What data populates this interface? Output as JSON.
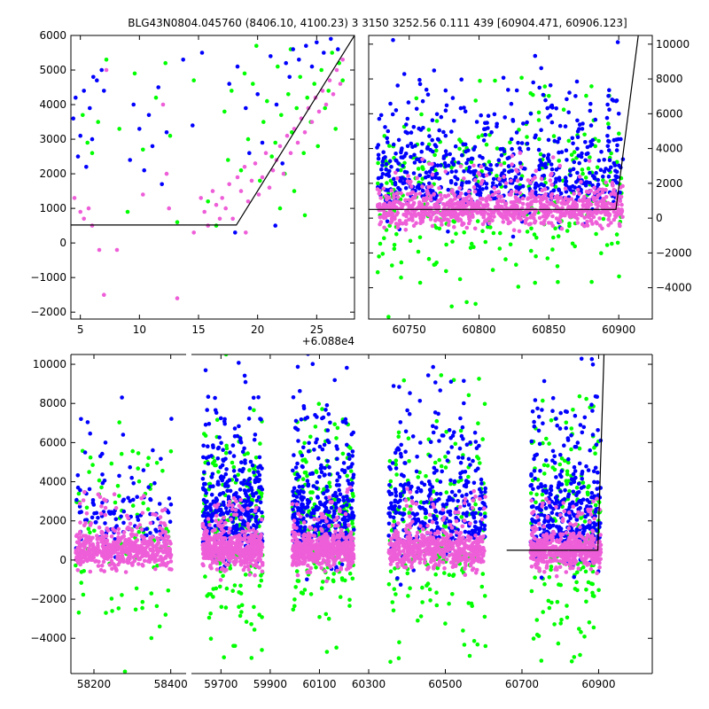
{
  "title": "BLG43N0804.045760 (8406.10, 4100.23)    3 3150 3252.56 0.111 439 [60904.471, 60906.123]",
  "colors": {
    "green": "#00ff00",
    "blue": "#0000ff",
    "pink": "#ee5ed8",
    "axis": "#000000"
  },
  "chart_data": [
    {
      "id": "top-left",
      "type": "scatter",
      "x_offset_label": "+6.088e4",
      "xlim": [
        4.2,
        28.2
      ],
      "ylim": [
        -2200,
        6000
      ],
      "xticks": [
        5,
        10,
        15,
        20,
        25
      ],
      "yticks": [
        -2000,
        -1000,
        0,
        1000,
        2000,
        3000,
        4000,
        5000,
        6000
      ],
      "ytick_labels": [
        "−2000",
        "−1000",
        "0",
        "1000",
        "2000",
        "3000",
        "4000",
        "5000",
        "6000"
      ],
      "yaxis_side": "left",
      "model_line": {
        "x": [
          4.2,
          18.2,
          28.2
        ],
        "y": [
          520,
          520,
          6000
        ]
      },
      "series": [
        {
          "name": "green",
          "color": "#00ff00",
          "points": [
            [
              5.2,
              3700
            ],
            [
              5.6,
              2900
            ],
            [
              6.0,
              2600
            ],
            [
              6.5,
              3500
            ],
            [
              7.2,
              5300
            ],
            [
              8.3,
              3300
            ],
            [
              9.0,
              900
            ],
            [
              9.6,
              4900
            ],
            [
              10.3,
              2700
            ],
            [
              11.4,
              4200
            ],
            [
              12.2,
              5200
            ],
            [
              12.6,
              3100
            ],
            [
              13.2,
              600
            ],
            [
              14.6,
              4700
            ],
            [
              15.8,
              1200
            ],
            [
              16.5,
              500
            ],
            [
              17.2,
              3800
            ],
            [
              17.8,
              4400
            ],
            [
              18.6,
              2100
            ],
            [
              19.2,
              3000
            ],
            [
              19.6,
              4600
            ],
            [
              20.2,
              1800
            ],
            [
              20.5,
              3500
            ],
            [
              20.8,
              4100
            ],
            [
              21.2,
              2500
            ],
            [
              21.5,
              2900
            ],
            [
              21.7,
              5100
            ],
            [
              22.0,
              3700
            ],
            [
              22.3,
              2000
            ],
            [
              22.6,
              4300
            ],
            [
              22.9,
              3200
            ],
            [
              23.1,
              1500
            ],
            [
              23.3,
              3900
            ],
            [
              23.6,
              4800
            ],
            [
              23.9,
              2600
            ],
            [
              24.2,
              4200
            ],
            [
              24.5,
              3500
            ],
            [
              24.8,
              4600
            ],
            [
              25.1,
              2800
            ],
            [
              25.4,
              5000
            ],
            [
              25.7,
              3900
            ],
            [
              26.0,
              4400
            ],
            [
              26.3,
              5500
            ],
            [
              26.6,
              3300
            ],
            [
              26.9,
              5200
            ],
            [
              27.2,
              4700
            ],
            [
              19.9,
              5700
            ],
            [
              18.9,
              4900
            ],
            [
              17.5,
              2400
            ],
            [
              21.9,
              1000
            ],
            [
              24.0,
              800
            ],
            [
              22.8,
              5600
            ]
          ]
        },
        {
          "name": "blue",
          "color": "#0000ff",
          "points": [
            [
              4.4,
              3600
            ],
            [
              4.6,
              4200
            ],
            [
              4.8,
              2500
            ],
            [
              5.0,
              3100
            ],
            [
              5.3,
              4400
            ],
            [
              5.5,
              2200
            ],
            [
              5.8,
              3900
            ],
            [
              6.1,
              4800
            ],
            [
              6.4,
              4700
            ],
            [
              6.8,
              5000
            ],
            [
              7.0,
              4400
            ],
            [
              9.5,
              4000
            ],
            [
              10.0,
              3300
            ],
            [
              10.4,
              2100
            ],
            [
              10.8,
              3700
            ],
            [
              11.1,
              2800
            ],
            [
              11.6,
              4500
            ],
            [
              11.9,
              1700
            ],
            [
              12.3,
              3200
            ],
            [
              13.7,
              5300
            ],
            [
              14.5,
              3400
            ],
            [
              15.3,
              5500
            ],
            [
              17.6,
              4600
            ],
            [
              18.3,
              5100
            ],
            [
              19.0,
              3900
            ],
            [
              19.3,
              2600
            ],
            [
              20.0,
              4300
            ],
            [
              20.4,
              2900
            ],
            [
              21.1,
              5400
            ],
            [
              21.6,
              4000
            ],
            [
              22.1,
              2300
            ],
            [
              22.4,
              5200
            ],
            [
              22.7,
              4800
            ],
            [
              23.0,
              5600
            ],
            [
              23.5,
              5300
            ],
            [
              24.1,
              5700
            ],
            [
              24.6,
              5100
            ],
            [
              25.0,
              5800
            ],
            [
              25.6,
              5500
            ],
            [
              26.2,
              5900
            ],
            [
              26.8,
              5600
            ],
            [
              21.5,
              500
            ],
            [
              18.1,
              300
            ],
            [
              9.2,
              2400
            ],
            [
              6.0,
              3000
            ]
          ]
        },
        {
          "name": "pink",
          "color": "#ee5ed8",
          "points": [
            [
              4.5,
              1300
            ],
            [
              5.0,
              900
            ],
            [
              5.3,
              700
            ],
            [
              5.7,
              1000
            ],
            [
              6.0,
              500
            ],
            [
              6.6,
              -200
            ],
            [
              7.0,
              -1500
            ],
            [
              7.2,
              5000
            ],
            [
              8.1,
              -200
            ],
            [
              12.0,
              4000
            ],
            [
              12.3,
              2000
            ],
            [
              12.5,
              1000
            ],
            [
              13.2,
              -1600
            ],
            [
              15.2,
              1300
            ],
            [
              15.5,
              900
            ],
            [
              15.8,
              500
            ],
            [
              16.2,
              1500
            ],
            [
              16.5,
              1100
            ],
            [
              16.8,
              700
            ],
            [
              17.0,
              1300
            ],
            [
              17.3,
              1000
            ],
            [
              17.6,
              1700
            ],
            [
              17.9,
              700
            ],
            [
              18.3,
              1900
            ],
            [
              18.6,
              1500
            ],
            [
              18.9,
              2200
            ],
            [
              19.2,
              1200
            ],
            [
              19.5,
              1800
            ],
            [
              19.8,
              2300
            ],
            [
              20.1,
              1400
            ],
            [
              20.4,
              1900
            ],
            [
              20.7,
              2600
            ],
            [
              21.0,
              1600
            ],
            [
              21.3,
              2100
            ],
            [
              21.6,
              2400
            ],
            [
              21.9,
              2800
            ],
            [
              22.2,
              2000
            ],
            [
              22.5,
              3100
            ],
            [
              22.8,
              2600
            ],
            [
              23.1,
              3300
            ],
            [
              23.4,
              2900
            ],
            [
              23.7,
              3600
            ],
            [
              24.0,
              3200
            ],
            [
              24.3,
              3900
            ],
            [
              24.6,
              3500
            ],
            [
              24.9,
              4200
            ],
            [
              25.2,
              3800
            ],
            [
              25.5,
              4400
            ],
            [
              25.8,
              4000
            ],
            [
              26.1,
              4700
            ],
            [
              26.4,
              4300
            ],
            [
              26.7,
              5000
            ],
            [
              27.0,
              4600
            ],
            [
              27.2,
              5300
            ],
            [
              10.3,
              1400
            ],
            [
              14.6,
              300
            ],
            [
              19.0,
              300
            ]
          ]
        }
      ]
    },
    {
      "id": "top-right",
      "type": "scatter",
      "xlim": [
        60721,
        60924
      ],
      "ylim": [
        -5800,
        10500
      ],
      "xticks": [
        60750,
        60800,
        60850,
        60900
      ],
      "yticks": [
        -4000,
        -2000,
        0,
        2000,
        4000,
        6000,
        8000,
        10000
      ],
      "ytick_labels": [
        "−4000",
        "−2000",
        "0",
        "2000",
        "4000",
        "6000",
        "8000",
        "10000"
      ],
      "yaxis_side": "right",
      "model_line": {
        "x": [
          60721,
          60898,
          60914
        ],
        "y": [
          500,
          500,
          10500
        ]
      },
      "band": {
        "x_range": [
          60727,
          60903
        ]
      },
      "series": [
        {
          "name": "green",
          "color": "#00ff00",
          "role": "green"
        },
        {
          "name": "blue",
          "color": "#0000ff",
          "role": "blue"
        },
        {
          "name": "pink",
          "color": "#ee5ed8",
          "role": "pink"
        }
      ]
    },
    {
      "id": "bottom",
      "type": "scatter",
      "segments": [
        [
          58140,
          58440
        ],
        [
          59580,
          60300
        ],
        [
          60300,
          61040
        ]
      ],
      "xlim_segments": "broken-axis",
      "ylim": [
        -5800,
        10500
      ],
      "xticks": [
        58200,
        58400,
        59700,
        59900,
        60100,
        60300,
        60500,
        60700,
        60900
      ],
      "yticks": [
        -4000,
        -2000,
        0,
        2000,
        4000,
        6000,
        8000,
        10000
      ],
      "ytick_labels": [
        "−4000",
        "−2000",
        "0",
        "2000",
        "4000",
        "6000",
        "8000",
        "10000"
      ],
      "yaxis_side": "left",
      "seasons": [
        [
          58152,
          58402
        ],
        [
          59625,
          59870
        ],
        [
          59990,
          60240
        ],
        [
          60352,
          60605
        ],
        [
          60722,
          60906
        ]
      ],
      "model_line": {
        "x": [
          60660,
          60898,
          60914
        ],
        "y": [
          500,
          500,
          10500
        ]
      },
      "series": [
        {
          "name": "green",
          "color": "#00ff00",
          "role": "green"
        },
        {
          "name": "blue",
          "color": "#0000ff",
          "role": "blue"
        },
        {
          "name": "pink",
          "color": "#ee5ed8",
          "role": "pink"
        }
      ]
    }
  ]
}
